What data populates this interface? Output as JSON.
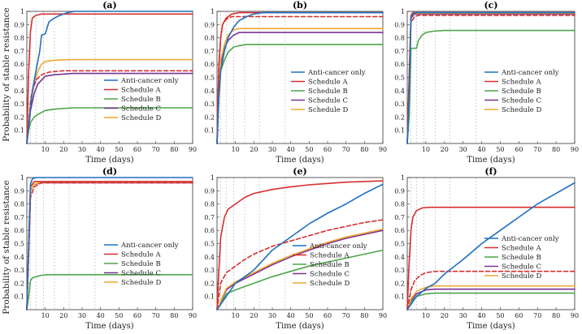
{
  "figure": {
    "ylabel": "Probability of stable resistance",
    "xlabel": "Time (days)"
  },
  "series_names": [
    "Anti-cancer only",
    "Schedule A",
    "Schedule B",
    "Schedule C",
    "Schedule D"
  ],
  "colors": {
    "anti_cancer": "#1f70c1",
    "schedule_a": "#d62f2f",
    "schedule_b": "#4ea64a",
    "schedule_c": "#7b3294",
    "schedule_d": "#f0a830",
    "dose_lines": "#c8c8c8"
  },
  "chart_data": [
    {
      "panel": "(a)",
      "type": "line",
      "xlabel": "Time (days)",
      "ylabel": "Probability of stable resistance",
      "xlim": [
        0,
        90
      ],
      "ylim": [
        0,
        1
      ],
      "xticks": [
        10,
        20,
        30,
        40,
        50,
        60,
        70,
        80,
        90
      ],
      "yticks": [
        0.1,
        0.2,
        0.3,
        0.4,
        0.5,
        0.6,
        0.7,
        0.8,
        0.9,
        1
      ],
      "dose_times": [
        2,
        5,
        9,
        15,
        23,
        37
      ],
      "legend_position": "right",
      "series": [
        {
          "name": "Anti-cancer only",
          "style": "solid",
          "x": [
            0,
            3,
            5,
            7,
            8,
            10,
            12,
            15,
            18,
            22,
            26,
            30,
            90
          ],
          "y": [
            0,
            0.4,
            0.55,
            0.7,
            0.82,
            0.83,
            0.92,
            0.95,
            0.97,
            0.99,
            1.0,
            1.0,
            1.0
          ]
        },
        {
          "name": "Schedule A",
          "style": "solid",
          "x": [
            0,
            1,
            2,
            3,
            5,
            8,
            12,
            20,
            90
          ],
          "y": [
            0,
            0.55,
            0.85,
            0.95,
            0.97,
            0.98,
            0.98,
            0.98,
            0.98
          ]
        },
        {
          "name": "Schedule A (dashed)",
          "style": "dashed",
          "color": "schedule_a",
          "x": [
            0,
            1,
            2,
            3,
            5,
            8,
            12,
            20,
            90
          ],
          "y": [
            0,
            0.15,
            0.32,
            0.4,
            0.48,
            0.52,
            0.54,
            0.55,
            0.55
          ]
        },
        {
          "name": "Schedule B",
          "style": "solid",
          "x": [
            0,
            1,
            2,
            4,
            6,
            10,
            15,
            25,
            90
          ],
          "y": [
            0,
            0.1,
            0.16,
            0.2,
            0.22,
            0.25,
            0.26,
            0.27,
            0.27
          ]
        },
        {
          "name": "Schedule C",
          "style": "solid",
          "x": [
            0,
            2,
            4,
            6,
            8,
            10,
            15,
            25,
            90
          ],
          "y": [
            0,
            0.25,
            0.38,
            0.45,
            0.48,
            0.51,
            0.52,
            0.53,
            0.53
          ]
        },
        {
          "name": "Schedule D",
          "style": "solid",
          "x": [
            0,
            2,
            4,
            6,
            8,
            10,
            15,
            25,
            90
          ],
          "y": [
            0,
            0.3,
            0.45,
            0.55,
            0.6,
            0.62,
            0.63,
            0.635,
            0.635
          ]
        }
      ]
    },
    {
      "panel": "(b)",
      "type": "line",
      "xlabel": "Time (days)",
      "ylabel": "",
      "xlim": [
        0,
        90
      ],
      "ylim": [
        0,
        1
      ],
      "xticks": [
        10,
        20,
        30,
        40,
        50,
        60,
        70,
        80,
        90
      ],
      "yticks": [
        0.1,
        0.2,
        0.3,
        0.4,
        0.5,
        0.6,
        0.7,
        0.8,
        0.9,
        1
      ],
      "dose_times": [
        2,
        5,
        9,
        15,
        23,
        37
      ],
      "legend_position": "bottom-right",
      "series": [
        {
          "name": "Anti-cancer only",
          "style": "solid",
          "x": [
            0,
            1,
            2,
            4,
            6,
            9,
            12,
            16,
            20,
            25,
            90
          ],
          "y": [
            0,
            0.35,
            0.55,
            0.7,
            0.8,
            0.88,
            0.93,
            0.96,
            0.98,
            0.99,
            0.99
          ]
        },
        {
          "name": "Schedule A",
          "style": "solid",
          "x": [
            0,
            1,
            2,
            3,
            5,
            8,
            12,
            90
          ],
          "y": [
            0,
            0.6,
            0.8,
            0.9,
            0.95,
            0.98,
            0.99,
            0.99
          ]
        },
        {
          "name": "Schedule A (dashed)",
          "style": "dashed",
          "color": "schedule_a",
          "x": [
            0,
            1,
            2,
            3,
            5,
            8,
            90
          ],
          "y": [
            0,
            0.6,
            0.8,
            0.9,
            0.94,
            0.96,
            0.96
          ]
        },
        {
          "name": "Schedule B",
          "style": "solid",
          "x": [
            0,
            1,
            2,
            4,
            6,
            9,
            12,
            16,
            90
          ],
          "y": [
            0,
            0.35,
            0.55,
            0.63,
            0.69,
            0.73,
            0.74,
            0.75,
            0.75
          ]
        },
        {
          "name": "Schedule C",
          "style": "solid",
          "x": [
            0,
            1,
            2,
            4,
            6,
            9,
            12,
            90
          ],
          "y": [
            0,
            0.4,
            0.6,
            0.72,
            0.78,
            0.82,
            0.84,
            0.84
          ]
        },
        {
          "name": "Schedule D",
          "style": "solid",
          "x": [
            0,
            1,
            2,
            4,
            6,
            9,
            12,
            90
          ],
          "y": [
            0,
            0.42,
            0.63,
            0.75,
            0.82,
            0.86,
            0.87,
            0.87
          ]
        }
      ]
    },
    {
      "panel": "(c)",
      "type": "line",
      "xlabel": "Time (days)",
      "ylabel": "",
      "xlim": [
        0,
        90
      ],
      "ylim": [
        0,
        1
      ],
      "xticks": [
        10,
        20,
        30,
        40,
        50,
        60,
        70,
        80,
        90
      ],
      "yticks": [
        0.1,
        0.2,
        0.3,
        0.4,
        0.5,
        0.6,
        0.7,
        0.8,
        0.9,
        1
      ],
      "dose_times": [
        2,
        5,
        9,
        15,
        23,
        37
      ],
      "legend_position": "bottom-right",
      "series": [
        {
          "name": "Anti-cancer only",
          "style": "solid",
          "x": [
            0,
            1,
            2,
            3,
            5,
            90
          ],
          "y": [
            0,
            0.3,
            0.95,
            0.98,
            0.99,
            0.99
          ]
        },
        {
          "name": "Schedule A",
          "style": "solid",
          "x": [
            0,
            1,
            2,
            3,
            5,
            90
          ],
          "y": [
            0,
            0.5,
            0.97,
            0.99,
            0.99,
            0.99
          ]
        },
        {
          "name": "Schedule A (dashed)",
          "style": "dashed",
          "color": "schedule_a",
          "x": [
            0,
            1,
            2,
            4,
            6,
            90
          ],
          "y": [
            0,
            0.4,
            0.92,
            0.96,
            0.97,
            0.97
          ]
        },
        {
          "name": "Schedule B",
          "style": "solid",
          "x": [
            0,
            1,
            2,
            5,
            6,
            8,
            10,
            14,
            20,
            90
          ],
          "y": [
            0,
            0.2,
            0.72,
            0.72,
            0.78,
            0.82,
            0.84,
            0.85,
            0.855,
            0.855
          ]
        },
        {
          "name": "Schedule C",
          "style": "solid",
          "x": [
            0,
            1,
            2,
            4,
            90
          ],
          "y": [
            0,
            0.4,
            0.95,
            0.98,
            0.98
          ]
        },
        {
          "name": "Schedule D",
          "style": "solid",
          "x": [
            0,
            1,
            2,
            4,
            90
          ],
          "y": [
            0,
            0.42,
            0.96,
            0.985,
            0.985
          ]
        }
      ]
    },
    {
      "panel": "(d)",
      "type": "line",
      "xlabel": "Time (days)",
      "ylabel": "Probability of stable resistance",
      "xlim": [
        0,
        90
      ],
      "ylim": [
        0,
        1
      ],
      "xticks": [
        10,
        20,
        30,
        40,
        50,
        60,
        70,
        80,
        90
      ],
      "yticks": [
        0.1,
        0.2,
        0.3,
        0.4,
        0.5,
        0.6,
        0.7,
        0.8,
        0.9,
        1
      ],
      "dose_times": [
        2,
        5,
        9,
        15,
        23,
        37
      ],
      "legend_position": "right",
      "series": [
        {
          "name": "Anti-cancer only",
          "style": "solid",
          "x": [
            0,
            1,
            2,
            3,
            5,
            90
          ],
          "y": [
            0,
            0.5,
            0.95,
            0.99,
            1.0,
            1.0
          ]
        },
        {
          "name": "Schedule A",
          "style": "solid",
          "x": [
            0,
            1,
            2,
            4,
            90
          ],
          "y": [
            0,
            0.5,
            0.93,
            0.97,
            0.97
          ]
        },
        {
          "name": "Schedule A (dashed)",
          "style": "dashed",
          "color": "schedule_a",
          "x": [
            0,
            1,
            2,
            4,
            8,
            90
          ],
          "y": [
            0,
            0.4,
            0.85,
            0.93,
            0.96,
            0.96
          ]
        },
        {
          "name": "Schedule B",
          "style": "solid",
          "x": [
            0,
            1,
            2,
            3,
            5,
            8,
            12,
            90
          ],
          "y": [
            0,
            0.1,
            0.22,
            0.24,
            0.25,
            0.26,
            0.265,
            0.265
          ]
        },
        {
          "name": "Schedule C",
          "style": "solid",
          "x": [
            0,
            1,
            2,
            4,
            8,
            90
          ],
          "y": [
            0,
            0.45,
            0.9,
            0.95,
            0.96,
            0.96
          ]
        },
        {
          "name": "Schedule D",
          "style": "solid",
          "x": [
            0,
            1,
            2,
            4,
            8,
            90
          ],
          "y": [
            0,
            0.45,
            0.9,
            0.95,
            0.965,
            0.965
          ]
        }
      ]
    },
    {
      "panel": "(e)",
      "type": "line",
      "xlabel": "Time (days)",
      "ylabel": "",
      "xlim": [
        0,
        90
      ],
      "ylim": [
        0,
        1
      ],
      "xticks": [
        10,
        20,
        30,
        40,
        50,
        60,
        70,
        80,
        90
      ],
      "yticks": [
        0.1,
        0.2,
        0.3,
        0.4,
        0.5,
        0.6,
        0.7,
        0.8,
        0.9,
        1
      ],
      "dose_times": [
        2,
        5,
        9,
        15,
        23,
        37
      ],
      "legend_position": "bottom-right",
      "series": [
        {
          "name": "Anti-cancer only",
          "style": "solid",
          "x": [
            0,
            5,
            10,
            15,
            20,
            30,
            40,
            50,
            60,
            70,
            80,
            90
          ],
          "y": [
            0,
            0.1,
            0.2,
            0.25,
            0.3,
            0.45,
            0.55,
            0.65,
            0.73,
            0.8,
            0.88,
            0.95
          ]
        },
        {
          "name": "Schedule A",
          "style": "solid",
          "x": [
            0,
            1,
            2,
            4,
            6,
            10,
            15,
            20,
            30,
            40,
            50,
            60,
            70,
            80,
            90
          ],
          "y": [
            0,
            0.3,
            0.55,
            0.7,
            0.76,
            0.8,
            0.85,
            0.88,
            0.91,
            0.93,
            0.945,
            0.955,
            0.965,
            0.97,
            0.975
          ]
        },
        {
          "name": "Schedule A (dashed)",
          "style": "dashed",
          "color": "schedule_a",
          "x": [
            0,
            2,
            5,
            10,
            15,
            20,
            30,
            40,
            50,
            60,
            70,
            80,
            90
          ],
          "y": [
            0,
            0.2,
            0.28,
            0.33,
            0.38,
            0.42,
            0.48,
            0.52,
            0.56,
            0.6,
            0.63,
            0.66,
            0.68
          ]
        },
        {
          "name": "Schedule B",
          "style": "solid",
          "x": [
            0,
            5,
            10,
            20,
            30,
            40,
            50,
            60,
            70,
            80,
            90
          ],
          "y": [
            0,
            0.12,
            0.15,
            0.2,
            0.25,
            0.29,
            0.33,
            0.36,
            0.39,
            0.42,
            0.45
          ]
        },
        {
          "name": "Schedule C",
          "style": "solid",
          "x": [
            0,
            5,
            10,
            20,
            30,
            40,
            50,
            60,
            70,
            80,
            90
          ],
          "y": [
            0,
            0.15,
            0.2,
            0.27,
            0.34,
            0.4,
            0.45,
            0.5,
            0.54,
            0.57,
            0.6
          ]
        },
        {
          "name": "Schedule D",
          "style": "solid",
          "x": [
            0,
            5,
            10,
            20,
            30,
            40,
            50,
            60,
            70,
            80,
            90
          ],
          "y": [
            0,
            0.16,
            0.21,
            0.28,
            0.35,
            0.41,
            0.46,
            0.51,
            0.55,
            0.58,
            0.61
          ]
        }
      ]
    },
    {
      "panel": "(f)",
      "type": "line",
      "xlabel": "Time (days)",
      "ylabel": "",
      "xlim": [
        0,
        90
      ],
      "ylim": [
        0,
        1
      ],
      "xticks": [
        10,
        20,
        30,
        40,
        50,
        60,
        70,
        80,
        90
      ],
      "yticks": [
        0.1,
        0.2,
        0.3,
        0.4,
        0.5,
        0.6,
        0.7,
        0.8,
        0.9,
        1
      ],
      "dose_times": [
        2,
        5,
        9,
        15,
        23,
        37
      ],
      "legend_position": "right",
      "series": [
        {
          "name": "Anti-cancer only",
          "style": "solid",
          "x": [
            0,
            5,
            10,
            15,
            20,
            30,
            40,
            50,
            60,
            70,
            80,
            90
          ],
          "y": [
            0,
            0.1,
            0.16,
            0.2,
            0.27,
            0.38,
            0.5,
            0.6,
            0.7,
            0.8,
            0.88,
            0.96
          ]
        },
        {
          "name": "Schedule A",
          "style": "solid",
          "x": [
            0,
            1,
            2,
            3,
            5,
            8,
            12,
            20,
            90
          ],
          "y": [
            0,
            0.35,
            0.6,
            0.7,
            0.75,
            0.77,
            0.775,
            0.775,
            0.775
          ]
        },
        {
          "name": "Schedule A (dashed)",
          "style": "dashed",
          "color": "schedule_a",
          "x": [
            0,
            2,
            4,
            7,
            10,
            15,
            90
          ],
          "y": [
            0,
            0.15,
            0.22,
            0.26,
            0.28,
            0.29,
            0.29
          ]
        },
        {
          "name": "Schedule B",
          "style": "solid",
          "x": [
            0,
            2,
            5,
            10,
            15,
            90
          ],
          "y": [
            0,
            0.06,
            0.1,
            0.12,
            0.125,
            0.125
          ]
        },
        {
          "name": "Schedule C",
          "style": "solid",
          "x": [
            0,
            2,
            5,
            10,
            15,
            90
          ],
          "y": [
            0,
            0.07,
            0.12,
            0.15,
            0.155,
            0.155
          ]
        },
        {
          "name": "Schedule D",
          "style": "solid",
          "x": [
            0,
            2,
            5,
            10,
            15,
            90
          ],
          "y": [
            0,
            0.08,
            0.14,
            0.17,
            0.18,
            0.18
          ]
        }
      ]
    }
  ]
}
